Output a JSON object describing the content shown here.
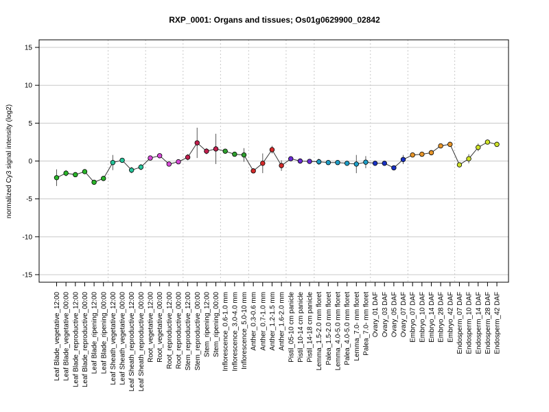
{
  "chart_data": {
    "type": "line",
    "title": "RXP_0001: Organs and tissues; Os01g0629900_02842",
    "xlabel": "",
    "ylabel": "normalized Cy3 signal intensity (log2)",
    "ylim": [
      -16,
      16
    ],
    "yticks": [
      -15,
      -10,
      -5,
      0,
      5,
      10,
      15
    ],
    "ytick_labels": [
      "-15",
      "-10",
      "-5",
      "0",
      "5",
      "10",
      "15"
    ],
    "grid": "horizontal at y ticks, dotted vertical separators between tissue groups",
    "categories": [
      "Leaf Blade_vegetative_12:00",
      "Leaf Blade_vegetative_00:00",
      "Leaf Blade_reproductive_12:00",
      "Leaf Blade_reproductive_00:00",
      "Leaf Blade_ripening_12:00",
      "Leaf Blade_ripening_00:00",
      "Leaf Sheath_vegetative_12:00",
      "Leaf Sheath_vegetative_00:00",
      "Leaf Sheath_reproductive_12:00",
      "Leaf Sheath_reproductive_00:00",
      "Root_vegetative_12:00",
      "Root_vegetative_00:00",
      "Root_reproductive_12:00",
      "Root_reproductive_00:00",
      "Stem_reproductive_12:00",
      "Stem_reproductive_00:00",
      "Stem_ripening_12:00",
      "Stem_ripening_00:00",
      "Inflorescence_0.6-1.0 mm",
      "Inflorescence_3.0-4.0 mm",
      "Inflorescence_5.0-10 mm",
      "Anther_0.3-0.6 mm",
      "Anther_0.7-1.0 mm",
      "Anther_1.2-1.5 mm",
      "Anther_1.6-2.0 mm",
      "Pistil_05-10 cm panicle",
      "Pistil_10-14 cm panicle",
      "Pistil_14-18 cm panicle",
      "Lemma_1.5-2.0 mm floret",
      "Palea_1.5-2.0 mm floret",
      "Lemma_4.0-5.0 mm floret",
      "Palea_4.0-5.0 mm floret",
      "Lemma_7.0- mm floret",
      "Palea_7.0- mm floret",
      "Ovary_01 DAF",
      "Ovary_03 DAF",
      "Ovary_05 DAF",
      "Ovary_07 DAF",
      "Embryo_07 DAF",
      "Embryo_10 DAF",
      "Embryo_14 DAF",
      "Embryo_28 DAF",
      "Embryo_42 DAF",
      "Endosperm_07 DAF",
      "Endosperm_10 DAF",
      "Endosperm_14 DAF",
      "Endosperm_28 DAF",
      "Endosperm_42 DAF"
    ],
    "values": [
      -2.2,
      -1.6,
      -1.8,
      -1.4,
      -2.8,
      -2.3,
      -0.2,
      0.1,
      -1.2,
      -0.8,
      0.4,
      0.7,
      -0.4,
      -0.1,
      0.5,
      2.4,
      1.3,
      1.6,
      1.3,
      0.9,
      0.8,
      -1.3,
      -0.3,
      1.5,
      -0.6,
      0.3,
      0.0,
      -0.05,
      -0.1,
      -0.2,
      -0.2,
      -0.3,
      -0.4,
      -0.15,
      -0.3,
      -0.3,
      -0.9,
      0.2,
      0.8,
      0.9,
      1.1,
      2.0,
      2.2,
      -0.5,
      0.3,
      1.8,
      2.5,
      2.2
    ],
    "errors": [
      1.1,
      0.4,
      0.3,
      0.3,
      0.3,
      0.3,
      1.0,
      0.3,
      0.4,
      0.4,
      0.2,
      0.2,
      0.3,
      0.2,
      0.4,
      2.0,
      0.4,
      2.0,
      0.3,
      0.2,
      0.9,
      0.2,
      1.3,
      0.5,
      0.7,
      0.2,
      0.2,
      0.2,
      0.4,
      0.2,
      0.2,
      0.2,
      1.2,
      0.8,
      0.2,
      0.2,
      0.3,
      0.6,
      0.3,
      0.2,
      0.2,
      0.2,
      0.2,
      0.3,
      0.6,
      0.5,
      0.3,
      0.2
    ],
    "point_colors": [
      "#2ab52a",
      "#2ab52a",
      "#2ab52a",
      "#2ab52a",
      "#2ab52a",
      "#2ab52a",
      "#26c49a",
      "#26c49a",
      "#26c49a",
      "#26c49a",
      "#d64ad6",
      "#d64ad6",
      "#d64ad6",
      "#d64ad6",
      "#c2204e",
      "#c2204e",
      "#c2204e",
      "#c2204e",
      "#2fa02f",
      "#2fa02f",
      "#2fa02f",
      "#d42a2a",
      "#d42a2a",
      "#d42a2a",
      "#d42a2a",
      "#6a2ad4",
      "#6a2ad4",
      "#6a2ad4",
      "#1e9ec7",
      "#1e9ec7",
      "#1e9ec7",
      "#1e9ec7",
      "#1e9ec7",
      "#1e9ec7",
      "#1a33c4",
      "#1a33c4",
      "#1a33c4",
      "#1a33c4",
      "#e8962a",
      "#e8962a",
      "#e8962a",
      "#e8962a",
      "#e8962a",
      "#cfe22a",
      "#cfe22a",
      "#cfe22a",
      "#cfe22a",
      "#cfe22a"
    ],
    "group_boundaries_after_index": [
      5,
      9,
      13,
      17,
      20,
      24,
      27,
      33,
      37,
      42
    ]
  }
}
